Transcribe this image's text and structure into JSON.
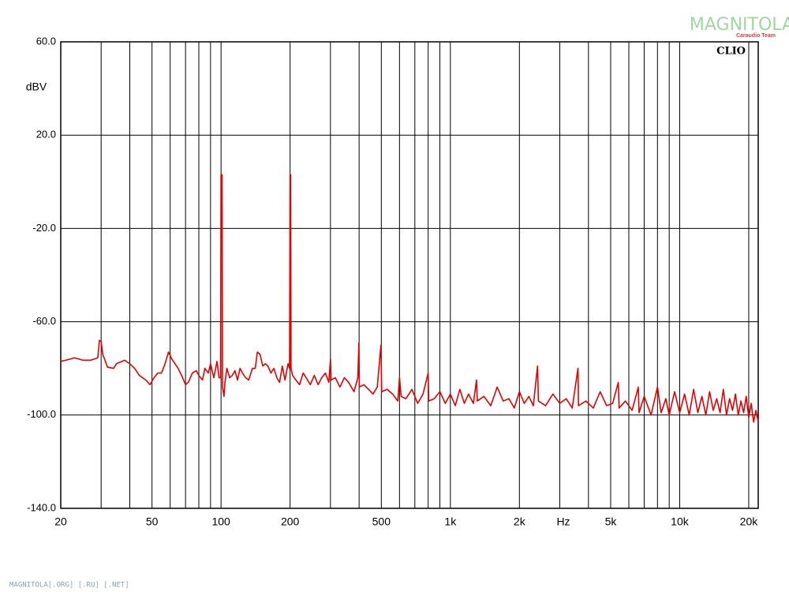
{
  "chart_data": {
    "type": "line",
    "y_label": "dBV",
    "x_label": "Hz",
    "brand": "CLIO",
    "xscale": "log",
    "grid": true,
    "xlim": [
      20,
      22000
    ],
    "ylim": [
      -140,
      60
    ],
    "yticks": [
      {
        "value": 60,
        "label": "60.0"
      },
      {
        "value": 20,
        "label": "20.0"
      },
      {
        "value": -20,
        "label": "-20.0"
      },
      {
        "value": -60,
        "label": "-60.0"
      },
      {
        "value": -100,
        "label": "-100.0"
      },
      {
        "value": -140,
        "label": "-140.0"
      }
    ],
    "xticks": [
      20,
      50,
      100,
      200,
      500,
      {
        "value": 1000,
        "label": "1k"
      },
      {
        "value": 2000,
        "label": "2k"
      },
      {
        "value": 5000,
        "label": "5k"
      },
      {
        "value": 10000,
        "label": "10k"
      },
      {
        "value": 20000,
        "label": "20k"
      }
    ],
    "xminor": [
      30,
      40,
      60,
      70,
      80,
      90,
      300,
      400,
      600,
      700,
      800,
      900,
      3000,
      4000,
      6000,
      7000,
      8000,
      9000
    ],
    "series": [
      {
        "color": "#e80000",
        "x": [
          20,
          21,
          23,
          25,
          27,
          29,
          29.5,
          30,
          30.5,
          32,
          34,
          35,
          37,
          38,
          40,
          42,
          44,
          47,
          49,
          51,
          53,
          55,
          57,
          59,
          61,
          63,
          65,
          68,
          70,
          72,
          75,
          78,
          80,
          83,
          85,
          88,
          90,
          93,
          96,
          98,
          99.5,
          100,
          101,
          101.5,
          103,
          104,
          106,
          109,
          112,
          115,
          118,
          121,
          124,
          128,
          132,
          137,
          141,
          144,
          148,
          152,
          156,
          160,
          165,
          170,
          175,
          180,
          185,
          190,
          196,
          199,
          200,
          201,
          202,
          205,
          212,
          220,
          228,
          235,
          245,
          255,
          265,
          275,
          285,
          295,
          300,
          302,
          315,
          330,
          345,
          360,
          380,
          395,
          399,
          401,
          420,
          440,
          460,
          480,
          498,
          502,
          530,
          560,
          590,
          600,
          610,
          640,
          680,
          700,
          720,
          760,
          800,
          805,
          850,
          900,
          950,
          1000,
          1050,
          1100,
          1150,
          1200,
          1260,
          1300,
          1310,
          1400,
          1500,
          1600,
          1700,
          1800,
          1900,
          2000,
          2100,
          2200,
          2300,
          2400,
          2420,
          2600,
          2800,
          3000,
          3200,
          3400,
          3600,
          3620,
          3900,
          4200,
          4500,
          4800,
          5100,
          5400,
          5440,
          5800,
          6200,
          6600,
          6650,
          7000,
          7500,
          8000,
          8300,
          8700,
          9000,
          9500,
          10000,
          10500,
          11000,
          11500,
          12000,
          12500,
          13000,
          13500,
          14000,
          14500,
          15000,
          15500,
          16000,
          16500,
          17000,
          17500,
          18000,
          18500,
          19000,
          19500,
          20000,
          20500,
          21000,
          21500,
          22000
        ],
        "values": [
          -77,
          -76.5,
          -75.5,
          -76.5,
          -76.5,
          -75.5,
          -68,
          -68.5,
          -74,
          -79.5,
          -80,
          -78,
          -77,
          -76.5,
          -78,
          -80,
          -83,
          -85,
          -87,
          -84,
          -82,
          -82,
          -78,
          -73,
          -76,
          -78,
          -80,
          -84,
          -87,
          -86,
          -82,
          -81,
          -83,
          -85,
          -80,
          -82,
          -78,
          -84,
          -77,
          -84,
          -84,
          3,
          3,
          -88,
          -92,
          -86,
          -80,
          -84,
          -83,
          -81,
          -85,
          -80,
          -82,
          -84,
          -85,
          -80,
          -80,
          -73,
          -74,
          -79,
          -78,
          -79,
          -82,
          -80,
          -84,
          -86,
          -79,
          -85,
          -78,
          -80,
          3,
          3,
          -80,
          -83,
          -85,
          -87,
          -82,
          -84,
          -87,
          -83,
          -87,
          -84,
          -82,
          -86,
          -76,
          -85,
          -84,
          -88,
          -84,
          -86,
          -90,
          -84,
          -69,
          -88,
          -87,
          -89,
          -91,
          -88,
          -70,
          -90,
          -89,
          -91,
          -94,
          -84,
          -92,
          -93,
          -89,
          -92,
          -95,
          -91,
          -82,
          -94,
          -93,
          -90,
          -95,
          -91,
          -96,
          -89,
          -95,
          -91,
          -95,
          -85,
          -94,
          -92,
          -96,
          -88,
          -94,
          -93,
          -97,
          -90,
          -95,
          -92,
          -96,
          -79,
          -94,
          -96,
          -91,
          -95,
          -93,
          -97,
          -80,
          -96,
          -94,
          -97,
          -90,
          -96,
          -95,
          -86,
          -97,
          -94,
          -98,
          -88,
          -99,
          -92,
          -100,
          -88,
          -99,
          -93,
          -100,
          -90,
          -99,
          -91,
          -100,
          -89,
          -99,
          -92,
          -100,
          -90,
          -98,
          -93,
          -99,
          -89,
          -100,
          -93,
          -98,
          -91,
          -100,
          -94,
          -99,
          -92,
          -101,
          -95,
          -103,
          -98,
          -103
        ]
      }
    ]
  },
  "watermark": {
    "title": "MAGNITOLA",
    "subtitle": "Caraudio Team"
  },
  "footer": "MAGNITOLA[.ORG] [.RU] [.NET]"
}
